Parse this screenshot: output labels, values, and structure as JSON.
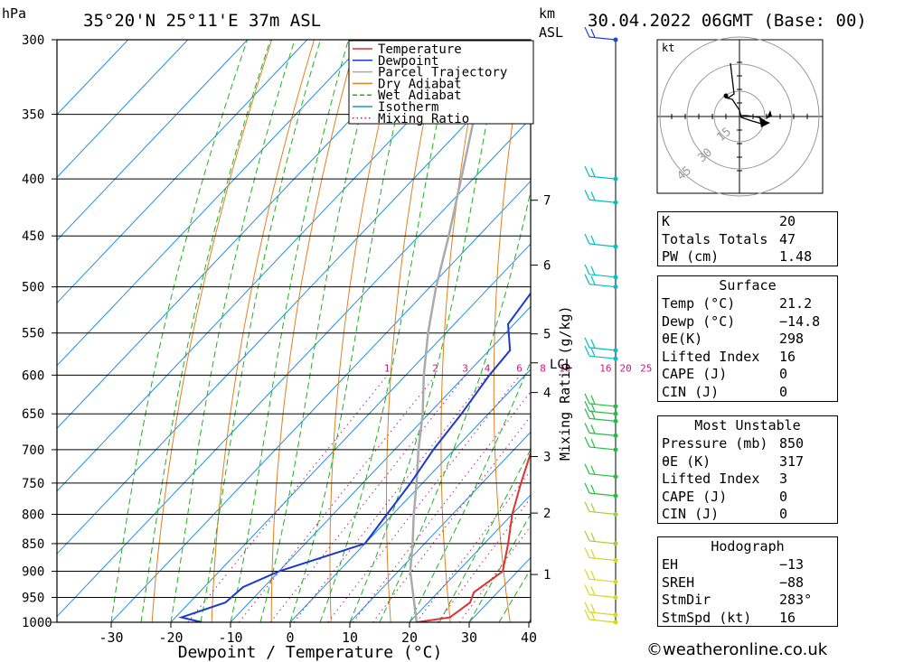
{
  "header": {
    "location": "35°20'N  25°11'E  37m  ASL",
    "datetime": "30.04.2022  06GMT  (Base: 00)",
    "hpa_label": "hPa",
    "km_label": "km",
    "asl_label": "ASL"
  },
  "chart_data": {
    "type": "skew-t",
    "xlabel": "Dewpoint / Temperature (°C)",
    "mixing_label": "Mixing Ratio (g/kg)",
    "x_ticks": [
      -30,
      -20,
      -10,
      0,
      10,
      20,
      30,
      40
    ],
    "xlim": [
      -40,
      40
    ],
    "pressure_levels": [
      300,
      350,
      400,
      450,
      500,
      550,
      600,
      650,
      700,
      750,
      800,
      850,
      900,
      950,
      1000
    ],
    "km_ticks": [
      {
        "km": 1,
        "p": 906
      },
      {
        "km": 2,
        "p": 798
      },
      {
        "km": 3,
        "p": 710
      },
      {
        "km": 4,
        "p": 622
      },
      {
        "km": 5,
        "p": 551
      },
      {
        "km": 6,
        "p": 478
      },
      {
        "km": 7,
        "p": 418
      }
    ],
    "lcl": {
      "label": "LCL",
      "p": 585
    },
    "mixing_ratio_labels": [
      "1",
      "2",
      "3",
      "4",
      "6",
      "8",
      "10",
      "16",
      "20",
      "25"
    ],
    "legend": [
      "Temperature",
      "Dewpoint",
      "Parcel Trajectory",
      "Dry Adiabat",
      "Wet Adiabat",
      "Isotherm",
      "Mixing Ratio"
    ],
    "legend_colors": [
      "#e03030",
      "#1a3ad0",
      "#aaaaaa",
      "#e08020",
      "#20b020",
      "#2090e0",
      "#c0207a"
    ],
    "temperature": [
      [
        1000,
        21.2
      ],
      [
        990,
        26
      ],
      [
        960,
        27
      ],
      [
        940,
        26
      ],
      [
        900,
        27.5
      ],
      [
        850,
        24
      ],
      [
        800,
        20
      ],
      [
        750,
        16.5
      ],
      [
        700,
        13
      ],
      [
        650,
        9
      ],
      [
        620,
        7
      ],
      [
        600,
        6.5
      ],
      [
        550,
        3.3
      ],
      [
        500,
        -2
      ],
      [
        450,
        -8
      ],
      [
        400,
        -16
      ],
      [
        370,
        -21
      ],
      [
        350,
        -26
      ],
      [
        300,
        -37
      ]
    ],
    "dewpoint": [
      [
        1000,
        -14.8
      ],
      [
        990,
        -19
      ],
      [
        960,
        -14
      ],
      [
        930,
        -13.5
      ],
      [
        900,
        -10
      ],
      [
        850,
        0
      ],
      [
        800,
        -1
      ],
      [
        750,
        -2
      ],
      [
        700,
        -3.5
      ],
      [
        650,
        -4.5
      ],
      [
        600,
        -6
      ],
      [
        570,
        -6.5
      ],
      [
        540,
        -11
      ],
      [
        510,
        -12
      ],
      [
        480,
        -13
      ],
      [
        450,
        -15
      ],
      [
        420,
        -17
      ],
      [
        390,
        -21
      ],
      [
        370,
        -28
      ],
      [
        350,
        -32
      ],
      [
        300,
        -40
      ]
    ],
    "parcel": [
      [
        1000,
        21.2
      ],
      [
        900,
        12
      ],
      [
        850,
        8
      ],
      [
        800,
        3.5
      ],
      [
        750,
        -1
      ],
      [
        700,
        -6
      ],
      [
        650,
        -11
      ],
      [
        600,
        -17
      ],
      [
        550,
        -23
      ],
      [
        500,
        -29
      ],
      [
        450,
        -35
      ],
      [
        400,
        -42
      ],
      [
        350,
        -50
      ],
      [
        300,
        -58
      ]
    ],
    "wind_barbs_p": [
      1000,
      985,
      950,
      920,
      880,
      850,
      800,
      770,
      740,
      700,
      680,
      660,
      650,
      640,
      570,
      580,
      500,
      490,
      460,
      420,
      400,
      300
    ]
  },
  "hodograph": {
    "unit": "kt",
    "rings": [
      "15",
      "30",
      "45"
    ]
  },
  "indices": [
    {
      "label": "K",
      "value": "20"
    },
    {
      "label": "Totals Totals",
      "value": "47"
    },
    {
      "label": "PW (cm)",
      "value": "1.48"
    }
  ],
  "surface": {
    "title": "Surface",
    "rows": [
      {
        "label": "Temp (°C)",
        "value": "21.2"
      },
      {
        "label": "Dewp (°C)",
        "value": "−14.8"
      },
      {
        "label": "θE(K)",
        "value": "298"
      },
      {
        "label": "Lifted Index",
        "value": "16"
      },
      {
        "label": "CAPE (J)",
        "value": "0"
      },
      {
        "label": "CIN (J)",
        "value": "0"
      }
    ]
  },
  "most_unstable": {
    "title": "Most Unstable",
    "rows": [
      {
        "label": "Pressure (mb)",
        "value": "850"
      },
      {
        "label": "θE (K)",
        "value": "317"
      },
      {
        "label": "Lifted Index",
        "value": "3"
      },
      {
        "label": "CAPE (J)",
        "value": "0"
      },
      {
        "label": "CIN (J)",
        "value": "0"
      }
    ]
  },
  "hodograph_params": {
    "title": "Hodograph",
    "rows": [
      {
        "label": "EH",
        "value": "−13"
      },
      {
        "label": "SREH",
        "value": "−88"
      },
      {
        "label": "StmDir",
        "value": "283°"
      },
      {
        "label": "StmSpd (kt)",
        "value": "16"
      }
    ]
  },
  "credit": "©weatheronline.co.uk"
}
